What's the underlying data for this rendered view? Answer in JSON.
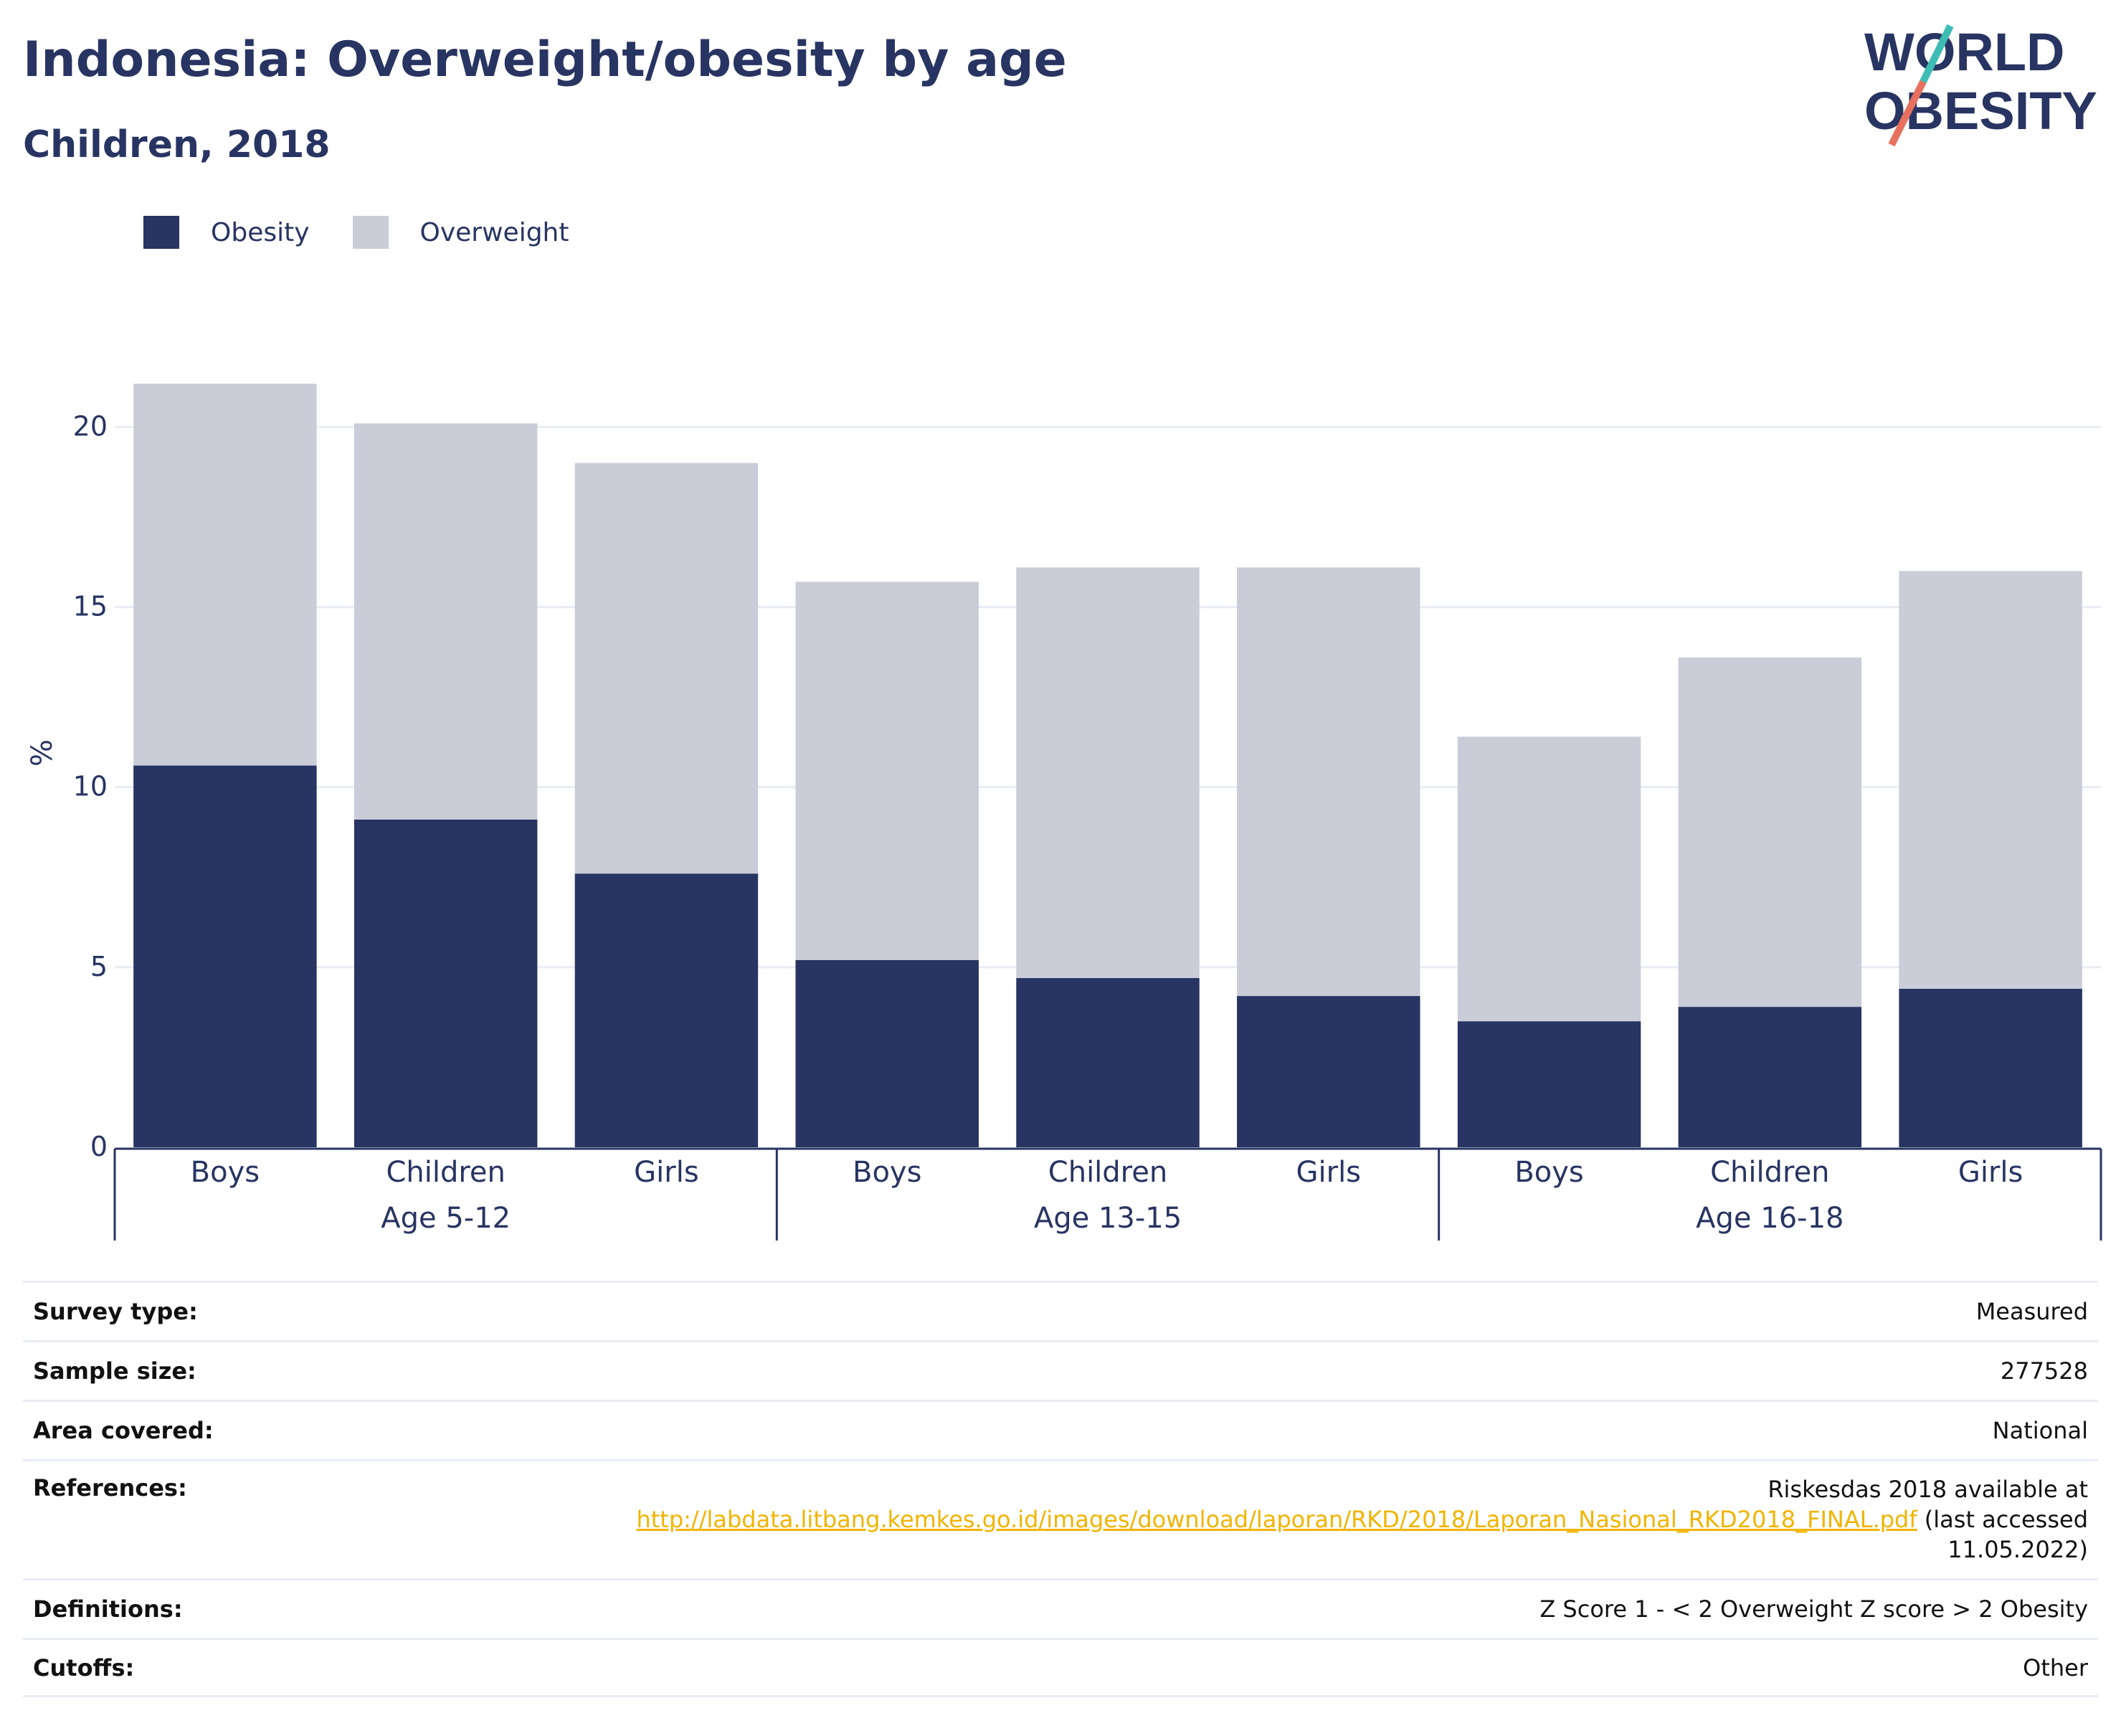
{
  "title": "Indonesia: Overweight/obesity by age",
  "subtitle": "Children, 2018",
  "logo": {
    "line1": "WORLD",
    "line2": "OBESITY"
  },
  "colors": {
    "obesity": "#283462",
    "overweight": "#cacdd8",
    "grid": "#e8ecf4",
    "text": "#283462",
    "link": "#f1b400",
    "logo_slash_top": "#3dbcb4",
    "logo_slash_bottom": "#e8705e"
  },
  "legend": {
    "obesity_label": "Obesity",
    "overweight_label": "Overweight"
  },
  "chart_data": {
    "type": "bar",
    "stacked": true,
    "ylabel": "%",
    "xlabel": "",
    "ylim": [
      0,
      21.9
    ],
    "yticks": [
      0,
      5,
      10,
      15,
      20
    ],
    "grid": true,
    "legend_position": "top-left",
    "groups": [
      "Age 5-12",
      "Age 13-15",
      "Age 16-18"
    ],
    "categories": [
      "Boys",
      "Children",
      "Girls",
      "Boys",
      "Children",
      "Girls",
      "Boys",
      "Children",
      "Girls"
    ],
    "category_groups": [
      0,
      0,
      0,
      1,
      1,
      1,
      2,
      2,
      2
    ],
    "series": [
      {
        "name": "Obesity",
        "values": [
          10.6,
          9.1,
          7.6,
          5.2,
          4.7,
          4.2,
          3.5,
          3.9,
          4.4
        ]
      },
      {
        "name": "Overweight",
        "values": [
          10.6,
          11.0,
          11.4,
          10.5,
          11.4,
          11.9,
          7.9,
          9.7,
          11.6
        ]
      }
    ]
  },
  "info": {
    "survey_type": {
      "label": "Survey type:",
      "value": "Measured"
    },
    "sample_size": {
      "label": "Sample size:",
      "value": "277528"
    },
    "area_covered": {
      "label": "Area covered:",
      "value": "National"
    },
    "references": {
      "label": "References:",
      "line1": "Riskesdas 2018 available at",
      "link": "http://labdata.litbang.kemkes.go.id/images/download/laporan/RKD/2018/Laporan_Nasional_RKD2018_FINAL.pdf",
      "line2_suffix": " (last accessed",
      "line3": "11.05.2022)"
    },
    "definitions": {
      "label": "Definitions:",
      "value": "Z Score 1 - < 2 Overweight Z score > 2 Obesity"
    },
    "cutoffs": {
      "label": "Cutoffs:",
      "value": "Other"
    }
  }
}
